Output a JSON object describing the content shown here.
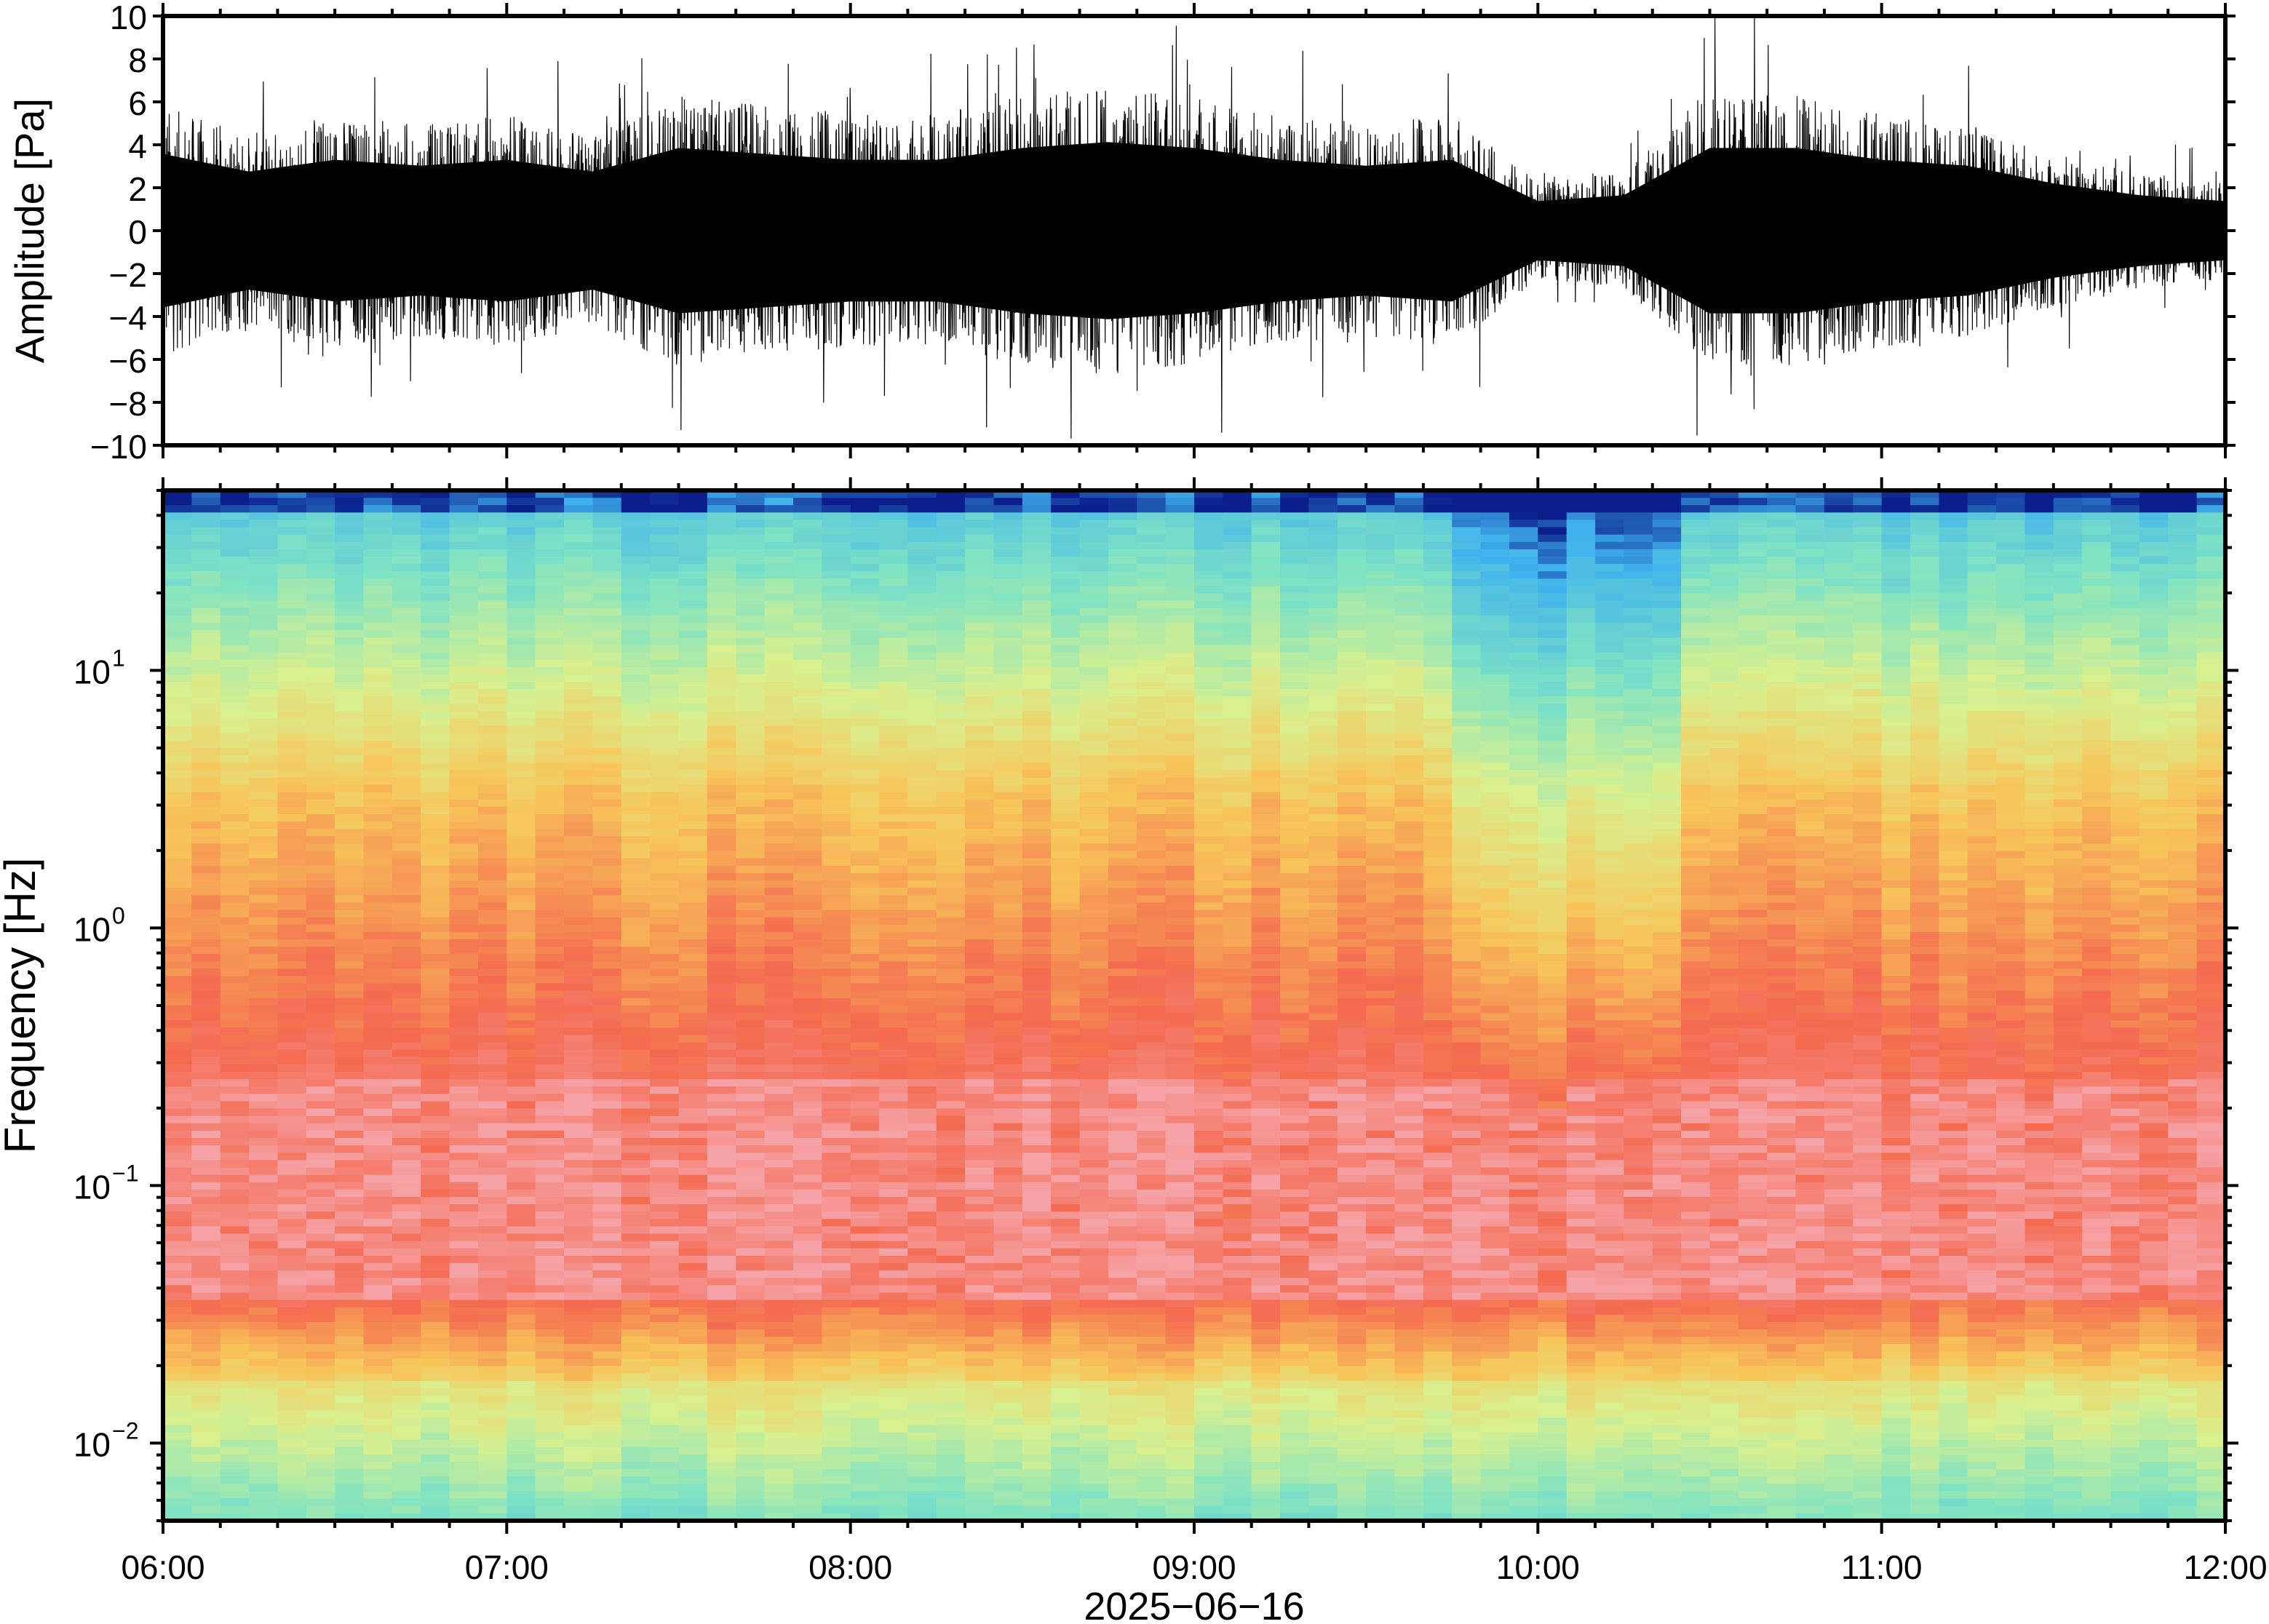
{
  "chart_data": [
    {
      "type": "line",
      "panel": "waveform",
      "ylabel": "Amplitude [Pa]",
      "ylim": [
        -10,
        10
      ],
      "yticks": [
        "10",
        "8",
        "6",
        "4",
        "2",
        "0",
        "−2",
        "−4",
        "−6",
        "−8",
        "−10"
      ],
      "ytick_values": [
        10,
        8,
        6,
        4,
        2,
        0,
        -2,
        -4,
        -6,
        -8,
        -10
      ],
      "xlim": [
        "06:00",
        "12:00"
      ],
      "grid": false,
      "series_color": "#000000",
      "envelope": {
        "time": [
          "06:00",
          "06:15",
          "06:30",
          "06:45",
          "07:00",
          "07:15",
          "07:30",
          "07:45",
          "08:00",
          "08:15",
          "08:30",
          "08:45",
          "09:00",
          "09:15",
          "09:30",
          "09:45",
          "10:00",
          "10:15",
          "10:30",
          "10:45",
          "11:00",
          "11:15",
          "11:30",
          "11:45",
          "12:00"
        ],
        "max_amplitude": [
          6.5,
          5,
          6,
          5.5,
          6,
          5,
          7,
          6.5,
          6,
          6,
          7,
          7.5,
          7,
          6,
          5.5,
          6,
          2.5,
          3,
          7,
          7,
          6,
          5.5,
          4,
          3,
          2.5
        ],
        "min_amplitude": [
          -6.5,
          -5,
          -6,
          -5.5,
          -6,
          -5,
          -7,
          -6.5,
          -6,
          -6,
          -7,
          -7.5,
          -7,
          -6,
          -5.5,
          -6,
          -2.5,
          -3,
          -7,
          -7,
          -6,
          -5.5,
          -4,
          -3,
          -2.5
        ]
      }
    },
    {
      "type": "heatmap",
      "panel": "spectrogram",
      "ylabel": "Frequency [Hz]",
      "yscale": "log",
      "ylim": [
        0.005,
        50
      ],
      "yticks": [
        {
          "value": 10,
          "base": "10",
          "exp": "1"
        },
        {
          "value": 1,
          "base": "10",
          "exp": "0"
        },
        {
          "value": 0.1,
          "base": "10",
          "exp": "−1"
        },
        {
          "value": 0.01,
          "base": "10",
          "exp": "−2"
        }
      ],
      "xlabel": "2025−06−16",
      "xticks": [
        "06:00",
        "07:00",
        "08:00",
        "09:00",
        "10:00",
        "11:00",
        "12:00"
      ],
      "xlim": [
        "06:00",
        "12:00"
      ],
      "colormap": "rainbow (blue low power → red high power)",
      "colors": {
        "lowest": "#0b1e8c",
        "low": "#3fb2ee",
        "mid_low": "#7fe3c4",
        "mid": "#d9f08f",
        "mid_high": "#f8c55a",
        "high": "#f46a50",
        "highest": "#f6a3a8"
      },
      "quiet_interval": [
        "09:45",
        "10:25"
      ]
    }
  ]
}
